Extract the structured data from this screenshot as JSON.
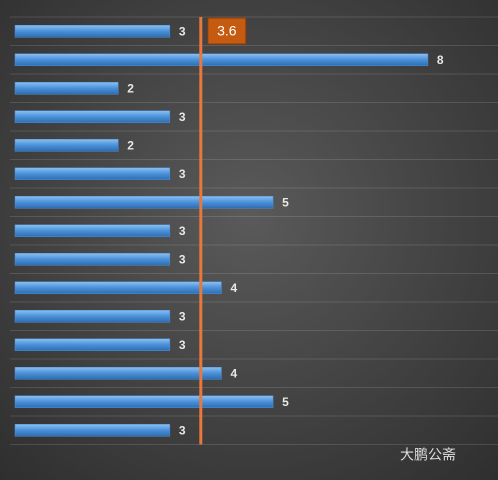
{
  "chart_data": {
    "type": "bar",
    "orientation": "horizontal",
    "categories": [
      null,
      null,
      null,
      null,
      null,
      null,
      null,
      null,
      null,
      null,
      null,
      null,
      null,
      null,
      null
    ],
    "values": [
      3,
      8,
      2,
      3,
      2,
      3,
      5,
      3,
      3,
      4,
      3,
      3,
      4,
      5,
      3
    ],
    "color": "#4a90d9",
    "xlim": [
      0,
      9.3
    ],
    "grid": true,
    "reference_line": {
      "value": 3.6,
      "color": "#e8793a",
      "label_color": "#c55a11"
    },
    "watermark": "大鹏公斋"
  }
}
